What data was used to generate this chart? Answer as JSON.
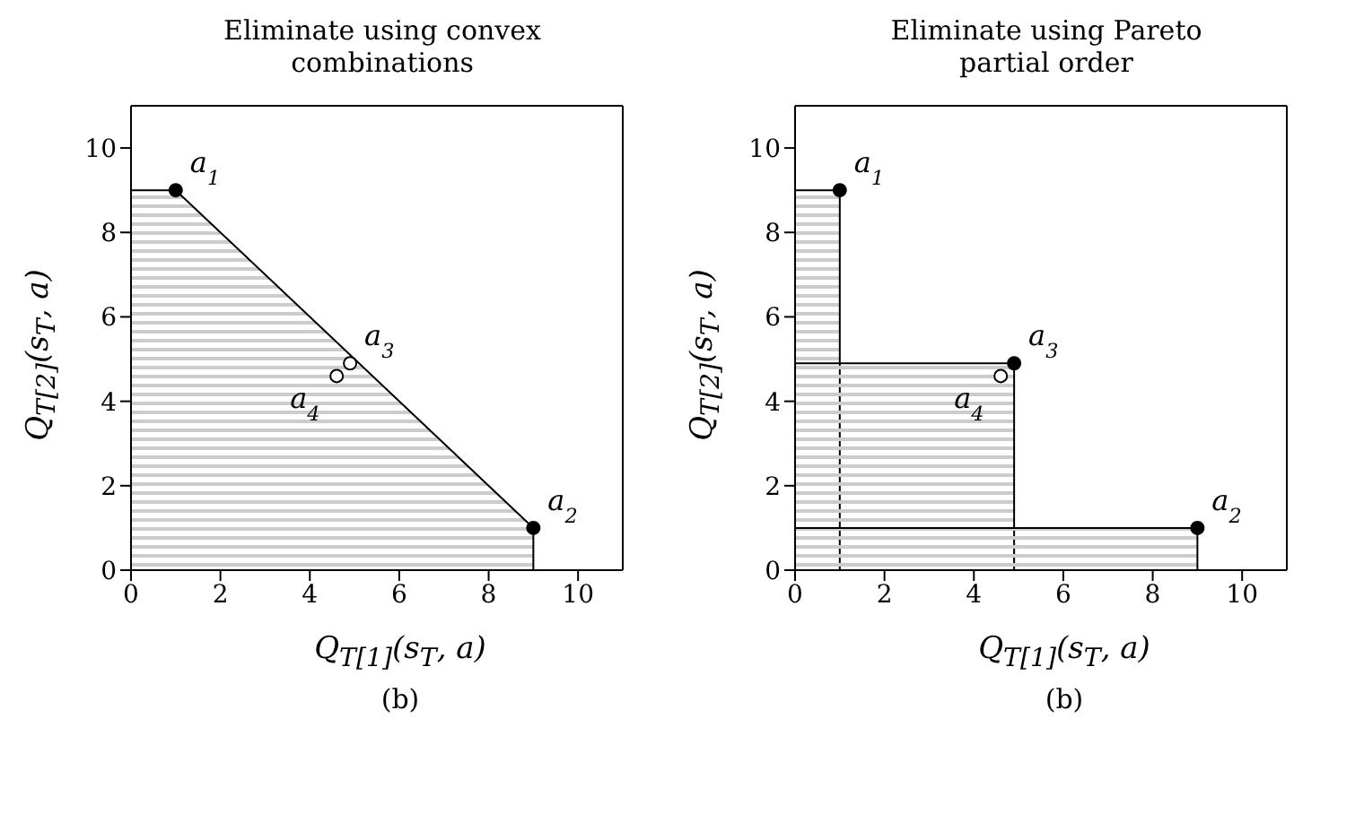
{
  "chart_data": [
    {
      "type": "scatter",
      "title": "Eliminate using convex combinations",
      "xlabel": "Q$_{T[1]}$(s$_{T}$, a)",
      "ylabel": "Q$_{T[2]}$(s$_{T}$, a)",
      "xlim": [
        0,
        11
      ],
      "ylim": [
        0,
        11
      ],
      "xticks": [
        0,
        2,
        4,
        6,
        8,
        10
      ],
      "yticks": [
        0,
        2,
        4,
        6,
        8,
        10
      ],
      "grid": false,
      "series": [
        {
          "type": "area",
          "color": "#000000",
          "x": [
            0,
            1,
            9,
            9
          ],
          "values": [
            9,
            9,
            1,
            0
          ]
        },
        {
          "marker": "circle",
          "color": "#000000",
          "x": [
            1,
            9
          ],
          "values": [
            9,
            1
          ]
        },
        {
          "marker": "circle",
          "color": "#ffffff",
          "x": [
            4.6,
            4.9
          ],
          "values": [
            4.6,
            4.9
          ]
        }
      ],
      "annotations": [
        {
          "text": "a$_{1}$",
          "x": 1,
          "y": 9
        },
        {
          "text": "a$_{2}$",
          "x": 9,
          "y": 1
        },
        {
          "text": "a$_{3}$",
          "x": 4.9,
          "y": 4.9
        },
        {
          "text": "a$_{4}$",
          "x": 4.6,
          "y": 4.6
        },
        "(b)"
      ]
    },
    {
      "type": "scatter",
      "title": "Eliminate using Pareto partial order",
      "xlabel": "Q$_{T[1]}$(s$_{T}$, a)",
      "ylabel": "Q$_{T[2]}$(s$_{T}$, a)",
      "xlim": [
        0,
        11
      ],
      "ylim": [
        0,
        11
      ],
      "xticks": [
        0,
        2,
        4,
        6,
        8,
        10
      ],
      "yticks": [
        0,
        2,
        4,
        6,
        8,
        10
      ],
      "grid": false,
      "series": [
        {
          "type": "area",
          "color": "#000000",
          "x": [
            0,
            1,
            1
          ],
          "values": [
            9,
            9,
            0
          ]
        },
        {
          "type": "area",
          "color": "#000000",
          "x": [
            0,
            4.9,
            4.9
          ],
          "values": [
            4.9,
            4.9,
            0
          ]
        },
        {
          "type": "area",
          "color": "#000000",
          "x": [
            0,
            9,
            9
          ],
          "values": [
            1,
            1,
            0
          ]
        },
        {
          "marker": "circle",
          "color": "#000000",
          "x": [
            1,
            4.9,
            9
          ],
          "values": [
            9,
            4.9,
            1
          ]
        },
        {
          "marker": "circle",
          "color": "#ffffff",
          "x": [
            4.6
          ],
          "values": [
            4.6
          ]
        }
      ],
      "annotations": [
        {
          "text": "a$_{1}$",
          "x": 1,
          "y": 9
        },
        {
          "text": "a$_{2}$",
          "x": 9,
          "y": 1
        },
        {
          "text": "a$_{3}$",
          "x": 4.9,
          "y": 4.9
        },
        {
          "text": "a$_{4}$",
          "x": 4.6,
          "y": 4.6
        },
        "(b)"
      ]
    }
  ]
}
